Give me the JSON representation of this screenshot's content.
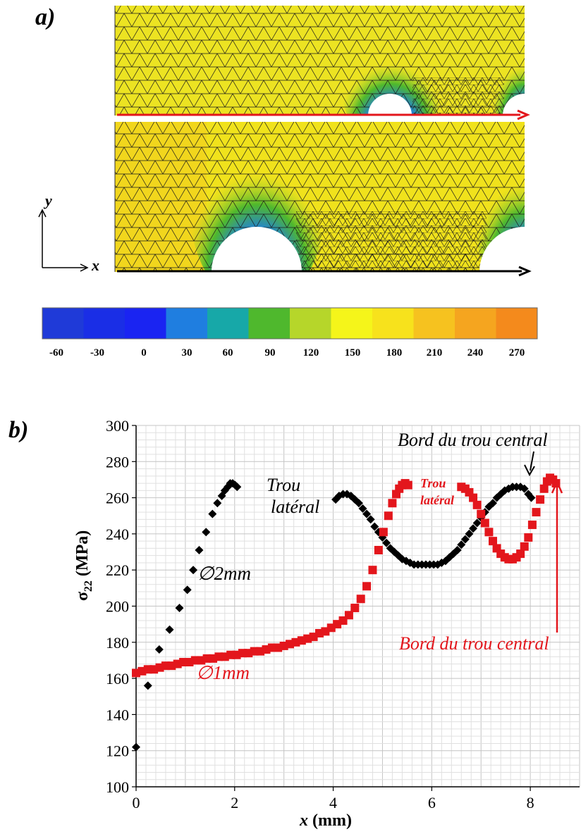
{
  "figure_a": {
    "panel_label": "a)",
    "axis_x_label": "x",
    "axis_y_label": "y",
    "colorbar": {
      "ticks": [
        "-60",
        "-30",
        "0",
        "30",
        "60",
        "90",
        "120",
        "150",
        "180",
        "210",
        "240",
        "270"
      ],
      "colors": [
        "#1f3ad8",
        "#1a2ee6",
        "#1a24f2",
        "#1f7ee0",
        "#17a8a8",
        "#4fb82d",
        "#b6d62a",
        "#f5f51a",
        "#f7e21c",
        "#f6c21f",
        "#f5a51f",
        "#f48a1c"
      ]
    },
    "path_colors": {
      "top": "#e3161c",
      "bottom": "#000000"
    }
  },
  "figure_b": {
    "panel_label": "b)",
    "annotations": {
      "black_diameter": "∅2mm",
      "red_diameter": "∅1mm",
      "black_trou_line1": "Trou",
      "black_trou_line2": "latéral",
      "red_trou_line1": "Trou",
      "red_trou_line2": "latéral",
      "black_bord": "Bord du trou central",
      "red_bord": "Bord du trou central"
    }
  },
  "chart_data": {
    "type": "scatter",
    "xlabel": "x (mm)",
    "ylabel": "σ22 (MPa)",
    "xlim": [
      0,
      9
    ],
    "ylim": [
      100,
      300
    ],
    "xticks": [
      0,
      2,
      4,
      6,
      8
    ],
    "yticks": [
      100,
      120,
      140,
      160,
      180,
      200,
      220,
      240,
      260,
      280,
      300
    ],
    "grid": true,
    "series": [
      {
        "name": "∅2mm",
        "color": "#000000",
        "marker": "diamond",
        "x": [
          0.0,
          0.24,
          0.47,
          0.68,
          0.88,
          1.04,
          1.16,
          1.28,
          1.42,
          1.55,
          1.65,
          1.74,
          1.8,
          1.86,
          1.91,
          1.96,
          2.01,
          2.05,
          4.05,
          4.12,
          4.2,
          4.28,
          4.36,
          4.44,
          4.52,
          4.6,
          4.68,
          4.76,
          4.84,
          4.92,
          5.0,
          5.08,
          5.16,
          5.24,
          5.32,
          5.4,
          5.48,
          5.56,
          5.64,
          5.72,
          5.8,
          5.88,
          5.96,
          6.04,
          6.12,
          6.2,
          6.28,
          6.36,
          6.44,
          6.52,
          6.6,
          6.68,
          6.76,
          6.84,
          6.92,
          7.0,
          7.08,
          7.16,
          7.24,
          7.32,
          7.4,
          7.48,
          7.56,
          7.64,
          7.72,
          7.8,
          7.88,
          7.96,
          8.02
        ],
        "y": [
          122,
          156,
          176,
          187,
          199,
          209,
          220,
          231,
          241,
          251,
          257,
          261,
          264,
          266,
          268,
          268,
          267,
          266,
          259,
          261,
          262,
          262,
          261,
          259,
          257,
          254,
          251,
          248,
          244,
          241,
          238,
          235,
          232,
          230,
          228,
          226,
          225,
          224,
          223,
          223,
          223,
          223,
          223,
          223,
          223,
          224,
          225,
          227,
          229,
          231,
          234,
          237,
          240,
          243,
          246,
          249,
          252,
          255,
          257,
          260,
          262,
          264,
          265,
          266,
          266,
          266,
          265,
          262,
          260
        ]
      },
      {
        "name": "∅1mm",
        "color": "#e3161c",
        "marker": "square",
        "x": [
          0.0,
          0.12,
          0.24,
          0.36,
          0.48,
          0.6,
          0.72,
          0.84,
          0.96,
          1.08,
          1.2,
          1.32,
          1.44,
          1.56,
          1.68,
          1.8,
          1.92,
          2.04,
          2.16,
          2.28,
          2.4,
          2.52,
          2.64,
          2.76,
          2.88,
          3.0,
          3.12,
          3.24,
          3.36,
          3.48,
          3.6,
          3.72,
          3.84,
          3.96,
          4.08,
          4.2,
          4.32,
          4.44,
          4.56,
          4.68,
          4.8,
          4.92,
          5.02,
          5.12,
          5.2,
          5.28,
          5.34,
          5.4,
          5.46,
          5.52,
          6.6,
          6.68,
          6.76,
          6.84,
          6.92,
          7.0,
          7.08,
          7.16,
          7.24,
          7.32,
          7.4,
          7.48,
          7.56,
          7.64,
          7.72,
          7.8,
          7.88,
          7.96,
          8.04,
          8.12,
          8.2,
          8.28,
          8.34,
          8.4,
          8.46,
          8.52
        ],
        "y": [
          163,
          164,
          165,
          165,
          166,
          167,
          167,
          168,
          169,
          169,
          170,
          170,
          171,
          171,
          172,
          172,
          173,
          173,
          174,
          174,
          175,
          175,
          176,
          177,
          177,
          178,
          179,
          180,
          181,
          182,
          183,
          185,
          186,
          188,
          190,
          192,
          195,
          199,
          204,
          211,
          220,
          231,
          241,
          250,
          257,
          262,
          265,
          267,
          268,
          267,
          266,
          265,
          263,
          260,
          256,
          251,
          246,
          241,
          236,
          232,
          229,
          227,
          226,
          226,
          227,
          229,
          233,
          238,
          245,
          252,
          259,
          265,
          269,
          271,
          270,
          268
        ]
      }
    ]
  }
}
